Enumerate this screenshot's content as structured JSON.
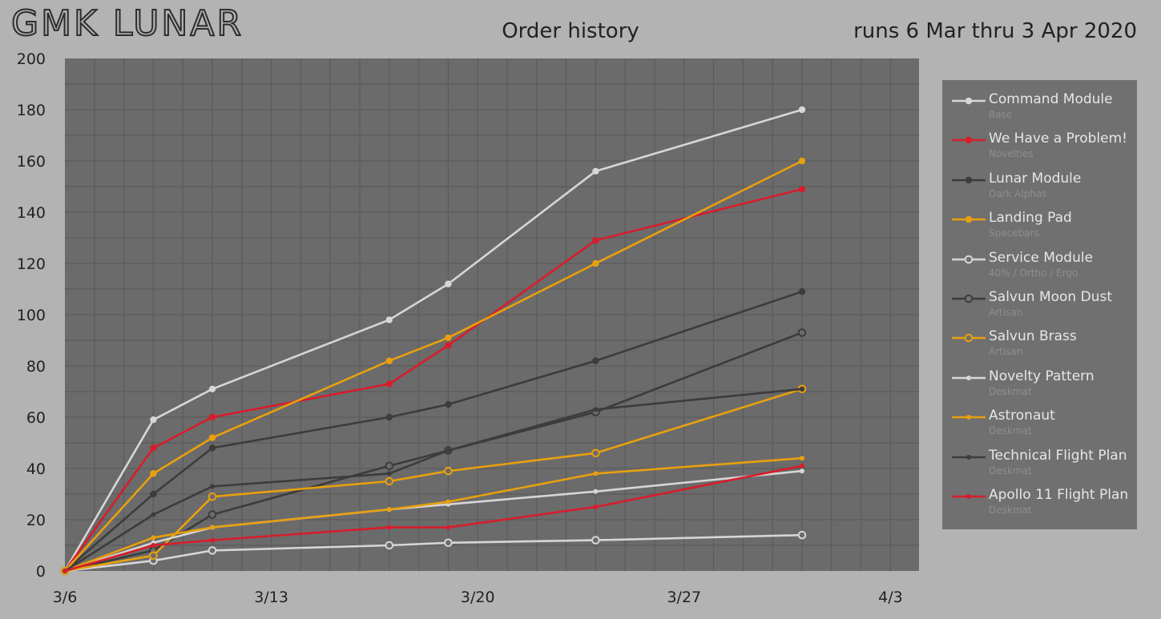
{
  "header": {
    "logo": "GMK LUNAR",
    "title": "Order history",
    "run_dates": "runs 6 Mar thru 3 Apr 2020"
  },
  "colors": {
    "page_bg": "#b3b3b3",
    "plot_bg": "#6b6b6b",
    "legend_bg": "#707070",
    "white": "#d6d6d6",
    "red": "#d71d2b",
    "dark": "#3c3c3c",
    "orange": "#e8a00e"
  },
  "chart_data": {
    "type": "line",
    "title": "Order history",
    "xlabel": "",
    "ylabel": "",
    "x_ticks": [
      "3/6",
      "3/13",
      "3/20",
      "3/27",
      "4/3"
    ],
    "y_ticks": [
      "0",
      "20",
      "40",
      "60",
      "80",
      "100",
      "120",
      "140",
      "160",
      "180",
      "200"
    ],
    "xlim": [
      "2020-03-06",
      "2020-04-03"
    ],
    "ylim": [
      0,
      200
    ],
    "grid": true,
    "legend_position": "right",
    "x": [
      "2020-03-06",
      "2020-03-09",
      "2020-03-11",
      "2020-03-17",
      "2020-03-19",
      "2020-03-24",
      "2020-03-31"
    ],
    "series": [
      {
        "name": "Command Module",
        "sub": "Base",
        "color": "#d6d6d6",
        "marker": "filled",
        "values": [
          0,
          59,
          71,
          98,
          112,
          156,
          180
        ]
      },
      {
        "name": "We Have a Problem!",
        "sub": "Novelties",
        "color": "#d71d2b",
        "marker": "filled",
        "values": [
          0,
          48,
          60,
          73,
          88,
          129,
          149
        ]
      },
      {
        "name": "Lunar Module",
        "sub": "Dark Alphas",
        "color": "#3c3c3c",
        "marker": "filled",
        "values": [
          0,
          30,
          48,
          60,
          65,
          82,
          109
        ]
      },
      {
        "name": "Landing Pad",
        "sub": "Spacebars",
        "color": "#e8a00e",
        "marker": "filled",
        "values": [
          0,
          38,
          52,
          82,
          91,
          120,
          160
        ]
      },
      {
        "name": "Service Module",
        "sub": "40% / Ortho / Ergo",
        "color": "#d6d6d6",
        "marker": "hollow",
        "values": [
          0,
          4,
          8,
          10,
          11,
          12,
          14
        ]
      },
      {
        "name": "Salvun Moon Dust",
        "sub": "Artisan",
        "color": "#3c3c3c",
        "marker": "hollow",
        "values": [
          0,
          8,
          22,
          41,
          47,
          62,
          93
        ]
      },
      {
        "name": "Salvun Brass",
        "sub": "Artisan",
        "color": "#e8a00e",
        "marker": "hollow",
        "values": [
          0,
          6,
          29,
          35,
          39,
          46,
          71
        ]
      },
      {
        "name": "Novelty Pattern",
        "sub": "Deskmat",
        "color": "#d6d6d6",
        "marker": "small",
        "values": [
          0,
          11,
          17,
          24,
          26,
          31,
          39
        ]
      },
      {
        "name": "Astronaut",
        "sub": "Deskmat",
        "color": "#e8a00e",
        "marker": "small",
        "values": [
          0,
          13,
          17,
          24,
          27,
          38,
          44
        ]
      },
      {
        "name": "Technical Flight Plan",
        "sub": "Deskmat",
        "color": "#3c3c3c",
        "marker": "small",
        "values": [
          0,
          22,
          33,
          38,
          47,
          63,
          71
        ]
      },
      {
        "name": "Apollo 11 Flight Plan",
        "sub": "Deskmat",
        "color": "#d71d2b",
        "marker": "small",
        "values": [
          0,
          10,
          12,
          17,
          17,
          25,
          41
        ]
      }
    ]
  }
}
